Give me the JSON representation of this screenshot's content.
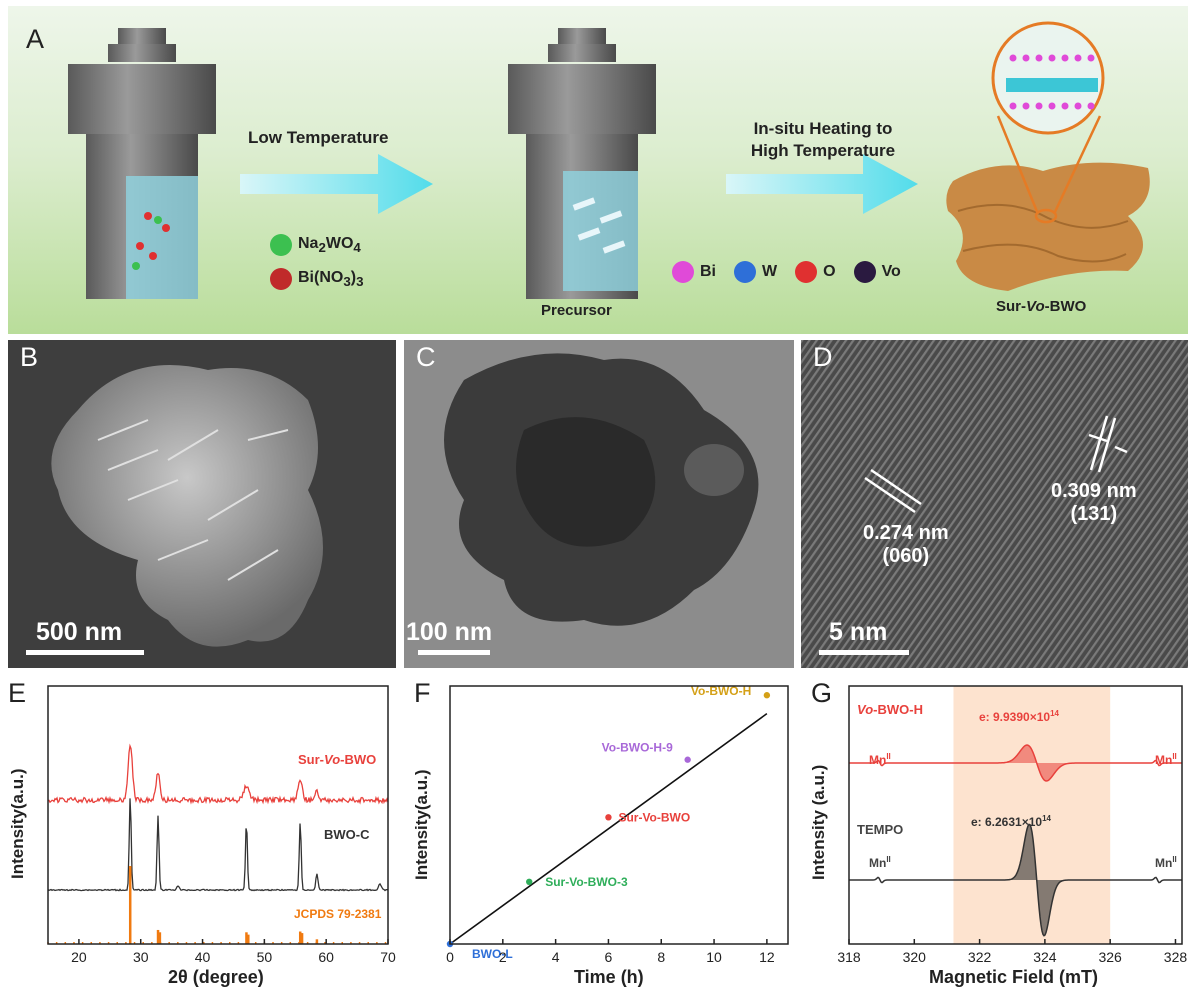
{
  "panel_labels": {
    "a": "A",
    "b": "B",
    "c": "C",
    "d": "D",
    "e": "E",
    "f": "F",
    "g": "G"
  },
  "panelA": {
    "arrow1_label": "Low Temperature",
    "arrow2_label_line1": "In-situ Heating to",
    "arrow2_label_line2": "High Temperature",
    "reagent1_main": "Na",
    "reagent1_sub1": "2",
    "reagent1_mid": "WO",
    "reagent1_sub2": "4",
    "reagent2_main": "Bi(NO",
    "reagent2_sub1": "3",
    "reagent2_mid": ")",
    "reagent2_sub2": "3",
    "precursor_label": "Precursor",
    "product_prefix": "Sur-",
    "product_italic": "Vo",
    "product_suffix": "-BWO",
    "atoms": [
      {
        "label": "Bi",
        "color": "#e04ad8"
      },
      {
        "label": "W",
        "color": "#2e6fd8"
      },
      {
        "label": "O",
        "color": "#e03030"
      },
      {
        "label": "Vo",
        "color": "#2a1a40"
      }
    ],
    "colors": {
      "arrow": "#5fe0ee",
      "product": "#c98a45",
      "liquid": "#8fd0dc",
      "vessel": "#6e6e6e"
    }
  },
  "panelB": {
    "scale_label": "500 nm"
  },
  "panelC": {
    "scale_label": "100 nm"
  },
  "panelD": {
    "scale_label": "5 nm",
    "fringe1_d": "0.274 nm",
    "fringe1_hkl": "(060)",
    "fringe2_d": "0.309 nm",
    "fringe2_hkl": "(131)"
  },
  "chart_data": [
    {
      "panel": "E",
      "type": "line",
      "xlabel": "2θ (degree)",
      "ylabel": "Intensity(a.u.)",
      "xlim": [
        15,
        70
      ],
      "xticks": [
        "20",
        "30",
        "40",
        "50",
        "60",
        "70"
      ],
      "series": [
        {
          "name": "Sur-Vo-BWO",
          "color": "#e8413c",
          "peaks": [
            28.3,
            32.8,
            47.1,
            55.8,
            58.5
          ]
        },
        {
          "name": "BWO-C",
          "color": "#333333",
          "peaks": [
            28.3,
            32.8,
            36.0,
            47.1,
            55.8,
            58.5,
            68.7
          ]
        }
      ],
      "reference": {
        "name": "JCPDS 79-2381",
        "color": "#f07a10",
        "positions": [
          28.3,
          32.8,
          33.1,
          47.1,
          47.4,
          55.8,
          56.1,
          58.5
        ],
        "heights": [
          1,
          0.18,
          0.15,
          0.15,
          0.12,
          0.16,
          0.14,
          0.06
        ]
      }
    },
    {
      "panel": "F",
      "type": "scatter",
      "xlabel": "Time (h)",
      "ylabel": "Intensity(a.u.)",
      "xlim": [
        0,
        12.8
      ],
      "ylim": [
        0,
        1.12
      ],
      "xticks": [
        "0",
        "2",
        "4",
        "6",
        "8",
        "10",
        "12"
      ],
      "points": [
        {
          "name": "BWO-L",
          "x": 0,
          "y": 0.0,
          "color": "#2e6fd8"
        },
        {
          "name": "Sur-Vo-BWO-3",
          "x": 3,
          "y": 0.27,
          "color": "#2fae5a"
        },
        {
          "name": "Sur-Vo-BWO",
          "x": 6,
          "y": 0.55,
          "color": "#e8413c"
        },
        {
          "name": "Vo-BWO-H-9",
          "x": 9,
          "y": 0.8,
          "color": "#a868d8"
        },
        {
          "name": "Vo-BWO-H",
          "x": 12,
          "y": 1.08,
          "color": "#d4a017"
        }
      ],
      "fit_line": {
        "x": [
          0,
          12
        ],
        "y": [
          0,
          1.0
        ]
      }
    },
    {
      "panel": "G",
      "type": "line",
      "xlabel": "Magnetic Field (mT)",
      "ylabel": "Intensity (a.u.)",
      "xlim": [
        318,
        328.2
      ],
      "xticks": [
        "318",
        "320",
        "322",
        "324",
        "326",
        "328"
      ],
      "highlight_range": [
        321.2,
        326.0
      ],
      "series": [
        {
          "name_italic": "Vo",
          "name_rest": "-BWO-H",
          "color": "#e8413c",
          "e_prefix": "e: 9.9390×10",
          "e_exp": "14"
        },
        {
          "name": "TEMPO",
          "color": "#333333",
          "e_prefix": "e: 6.2631×10",
          "e_exp": "14"
        }
      ],
      "mn_label": "Mn",
      "mn_sup": "II"
    }
  ]
}
